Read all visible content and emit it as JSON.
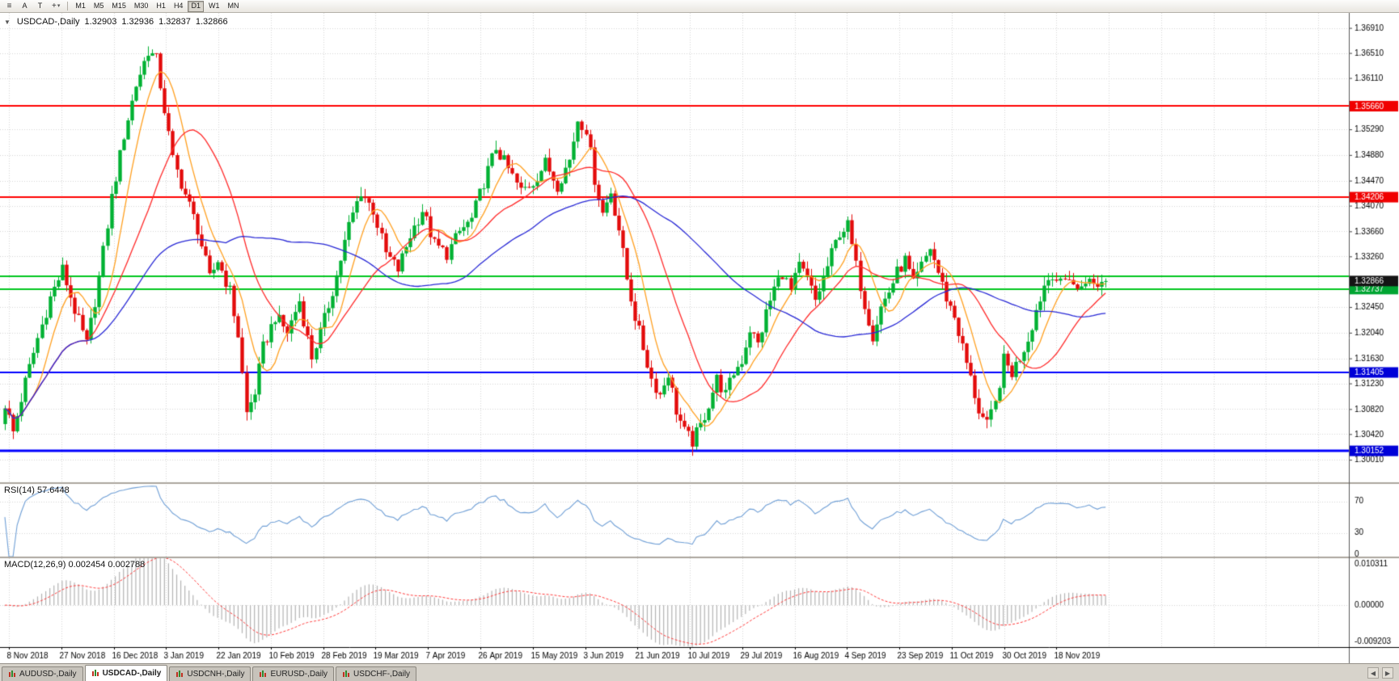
{
  "toolbar": {
    "icons": [
      {
        "name": "quotes-menu-icon",
        "glyph": "≡"
      },
      {
        "name": "text-annotation-button",
        "label": "A"
      },
      {
        "name": "text-tool-button",
        "label": "T"
      },
      {
        "name": "cursor-tool-icon",
        "glyph": "+",
        "chevron": "▾"
      }
    ],
    "timeframes": [
      "M1",
      "M5",
      "M15",
      "M30",
      "H1",
      "H4",
      "D1",
      "W1",
      "MN"
    ],
    "active_timeframe": "D1"
  },
  "chart_header": {
    "marker": "▼",
    "symbol_period": "USDCAD-,Daily",
    "open": "1.32903",
    "high": "1.32936",
    "low": "1.32837",
    "close": "1.32866"
  },
  "chart_data": {
    "type": "candlestick",
    "symbol": "USDCAD",
    "period": "Daily",
    "bars": 270,
    "y_domain": [
      1.2965,
      1.3715
    ],
    "y_ticks": [
      "1.36910",
      "1.36510",
      "1.36110",
      "1.35290",
      "1.34880",
      "1.34470",
      "1.34070",
      "1.33660",
      "1.33260",
      "1.32450",
      "1.32040",
      "1.31630",
      "1.31230",
      "1.30820",
      "1.30420",
      "1.30010"
    ],
    "price_badges": [
      {
        "value": "1.35660",
        "price": 1.3566,
        "bg": "#f00000"
      },
      {
        "value": "1.34206",
        "price": 1.34206,
        "bg": "#f00000"
      },
      {
        "value": "1.32737",
        "price": 1.32737,
        "bg": "#00a532"
      },
      {
        "value": "1.32866",
        "price": 1.32866,
        "bg": "#141414"
      },
      {
        "value": "1.31405",
        "price": 1.31405,
        "bg": "#0000d8"
      },
      {
        "value": "1.30152",
        "price": 1.30152,
        "bg": "#0000d8"
      }
    ],
    "hlines": [
      {
        "price": 1.3566,
        "color": "#ff0000",
        "width": 2
      },
      {
        "price": 1.34206,
        "color": "#ff0000",
        "width": 2
      },
      {
        "price": 1.3294,
        "color": "#00c61e",
        "width": 2
      },
      {
        "price": 1.32737,
        "color": "#00c61e",
        "width": 2
      },
      {
        "price": 1.31405,
        "color": "#0000ff",
        "width": 2
      },
      {
        "price": 1.30152,
        "color": "#0000ff",
        "width": 3
      }
    ],
    "x_labels": [
      "8 Nov 2018",
      "27 Nov 2018",
      "16 Dec 2018",
      "3 Jan 2019",
      "22 Jan 2019",
      "10 Feb 2019",
      "28 Feb 2019",
      "19 Mar 2019",
      "7 Apr 2019",
      "26 Apr 2019",
      "15 May 2019",
      "3 Jun 2019",
      "21 Jun 2019",
      "10 Jul 2019",
      "29 Jul 2019",
      "16 Aug 2019",
      "4 Sep 2019",
      "23 Sep 2019",
      "11 Oct 2019",
      "30 Oct 2019",
      "18 Nov 2019"
    ],
    "candle_colors": {
      "up": "#00b132",
      "down": "#e30b0b"
    },
    "moving_averages": [
      {
        "name": "fast-ma",
        "period": 8,
        "color": "#ffa020"
      },
      {
        "name": "mid-ma",
        "period": 21,
        "color": "#ff2a2a"
      },
      {
        "name": "slow-ma",
        "period": 55,
        "color": "#2929d6"
      }
    ],
    "price_anchors": [
      [
        0,
        1.309
      ],
      [
        2,
        1.3045
      ],
      [
        5,
        1.3125
      ],
      [
        8,
        1.3195
      ],
      [
        11,
        1.326
      ],
      [
        14,
        1.3305
      ],
      [
        17,
        1.324
      ],
      [
        20,
        1.3185
      ],
      [
        23,
        1.329
      ],
      [
        26,
        1.342
      ],
      [
        29,
        1.352
      ],
      [
        32,
        1.36
      ],
      [
        35,
        1.3655
      ],
      [
        37,
        1.364
      ],
      [
        39,
        1.356
      ],
      [
        41,
        1.348
      ],
      [
        44,
        1.3425
      ],
      [
        47,
        1.337
      ],
      [
        50,
        1.329
      ],
      [
        52,
        1.332
      ],
      [
        55,
        1.327
      ],
      [
        57,
        1.32
      ],
      [
        59,
        1.3075
      ],
      [
        61,
        1.311
      ],
      [
        63,
        1.318
      ],
      [
        66,
        1.323
      ],
      [
        69,
        1.3205
      ],
      [
        72,
        1.3255
      ],
      [
        75,
        1.3165
      ],
      [
        78,
        1.3225
      ],
      [
        81,
        1.3295
      ],
      [
        84,
        1.3375
      ],
      [
        87,
        1.343
      ],
      [
        90,
        1.34
      ],
      [
        93,
        1.333
      ],
      [
        96,
        1.3305
      ],
      [
        99,
        1.336
      ],
      [
        102,
        1.34
      ],
      [
        105,
        1.3345
      ],
      [
        108,
        1.333
      ],
      [
        111,
        1.3365
      ],
      [
        114,
        1.3385
      ],
      [
        117,
        1.3445
      ],
      [
        120,
        1.35
      ],
      [
        123,
        1.3465
      ],
      [
        126,
        1.343
      ],
      [
        129,
        1.3445
      ],
      [
        132,
        1.3475
      ],
      [
        135,
        1.344
      ],
      [
        138,
        1.348
      ],
      [
        140,
        1.3545
      ],
      [
        142,
        1.353
      ],
      [
        144,
        1.345
      ],
      [
        146,
        1.3395
      ],
      [
        148,
        1.343
      ],
      [
        150,
        1.337
      ],
      [
        152,
        1.329
      ],
      [
        154,
        1.323
      ],
      [
        156,
        1.318
      ],
      [
        158,
        1.313
      ],
      [
        160,
        1.3105
      ],
      [
        162,
        1.314
      ],
      [
        164,
        1.308
      ],
      [
        166,
        1.3045
      ],
      [
        168,
        1.303
      ],
      [
        170,
        1.3055
      ],
      [
        172,
        1.309
      ],
      [
        174,
        1.313
      ],
      [
        176,
        1.3105
      ],
      [
        178,
        1.314
      ],
      [
        180,
        1.316
      ],
      [
        182,
        1.321
      ],
      [
        184,
        1.3185
      ],
      [
        186,
        1.3235
      ],
      [
        188,
        1.3275
      ],
      [
        190,
        1.33
      ],
      [
        192,
        1.327
      ],
      [
        194,
        1.331
      ],
      [
        196,
        1.329
      ],
      [
        198,
        1.3255
      ],
      [
        200,
        1.329
      ],
      [
        202,
        1.333
      ],
      [
        204,
        1.3365
      ],
      [
        206,
        1.3375
      ],
      [
        208,
        1.331
      ],
      [
        210,
        1.325
      ],
      [
        212,
        1.32
      ],
      [
        214,
        1.3245
      ],
      [
        216,
        1.327
      ],
      [
        218,
        1.33
      ],
      [
        220,
        1.332
      ],
      [
        222,
        1.328
      ],
      [
        224,
        1.331
      ],
      [
        226,
        1.334
      ],
      [
        228,
        1.33
      ],
      [
        230,
        1.326
      ],
      [
        232,
        1.323
      ],
      [
        234,
        1.318
      ],
      [
        236,
        1.313
      ],
      [
        238,
        1.308
      ],
      [
        240,
        1.3055
      ],
      [
        242,
        1.309
      ],
      [
        244,
        1.316
      ],
      [
        246,
        1.314
      ],
      [
        248,
        1.3165
      ],
      [
        250,
        1.3195
      ],
      [
        252,
        1.324
      ],
      [
        254,
        1.328
      ],
      [
        256,
        1.33
      ],
      [
        258,
        1.328
      ],
      [
        260,
        1.3295
      ],
      [
        262,
        1.327
      ],
      [
        264,
        1.329
      ],
      [
        266,
        1.328
      ],
      [
        269,
        1.3287
      ]
    ],
    "rsi": {
      "label": "RSI(14) 57.6448",
      "period": 14,
      "value": 57.6448,
      "levels": [
        70,
        30
      ],
      "ticks": [
        "70",
        "30",
        "0"
      ],
      "color": "#6f9fd6",
      "range": [
        0,
        100
      ]
    },
    "macd": {
      "label": "MACD(12,26,9) 0.002454 0.002788",
      "fast": 12,
      "slow": 26,
      "signal_period": 9,
      "value": 0.002454,
      "signal_value": 0.002788,
      "ticks": [
        "0.010311",
        "0.00000",
        "-0.009203"
      ],
      "range": [
        -0.009203,
        0.010311
      ],
      "histogram_color": "#b4b4b4",
      "signal_color": "#ff3c3c"
    }
  },
  "tabbar": {
    "scroll_left_glyph": "◀",
    "scroll_right_glyph": "▶"
  },
  "tabs": [
    {
      "label": "AUDUSD-,Daily",
      "active": false
    },
    {
      "label": "USDCAD-,Daily",
      "active": true
    },
    {
      "label": "USDCNH-,Daily",
      "active": false
    },
    {
      "label": "EURUSD-,Daily",
      "active": false
    },
    {
      "label": "USDCHF-,Daily",
      "active": false
    }
  ]
}
